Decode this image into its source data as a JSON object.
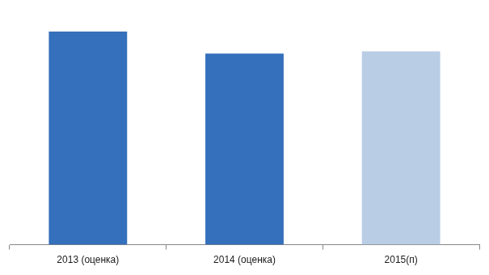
{
  "chart_data": {
    "type": "bar",
    "categories": [
      "2013 (оценка)",
      "2014 (оценка)",
      "2015(п)"
    ],
    "values": [
      270,
      242,
      245
    ],
    "colors": [
      "#3470bb",
      "#3470bb",
      "#b9cde5"
    ],
    "ylim": [
      0,
      270
    ],
    "grid": false,
    "tick_labels": "x"
  }
}
